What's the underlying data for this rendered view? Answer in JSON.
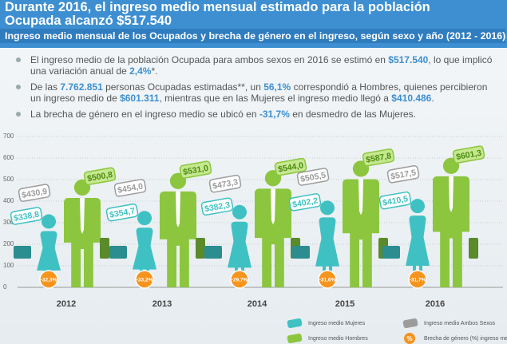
{
  "header": {
    "title": "Durante 2016, el ingreso medio mensual estimado para la población Ocupada alcanzó $517.540",
    "subtitle": "Ingreso medio mensual de los Ocupados y brecha de género en el ingreso, según sexo y año (2012 - 2016)"
  },
  "bullets": [
    [
      "El ingreso medio de la población Ocupada para ambos sexos en 2016 se estimó en ",
      "$517.540",
      ", lo que implicó una variación anual de ",
      "2,4%",
      "*."
    ],
    [
      "De las ",
      "7.762.851",
      " personas Ocupadas estimadas**, un ",
      "56,1%",
      " correspondió a Hombres, quienes percibieron un ingreso medio de ",
      "$601.311",
      ", mientras que en las Mujeres el ingreso medio llegó a ",
      "$410.486",
      "."
    ],
    [
      "La brecha de género en el ingreso medio se ubicó en ",
      "-31,7%",
      " en desmedro de las Mujeres."
    ]
  ],
  "chart_data": {
    "type": "pictogram",
    "categories": [
      "2012",
      "2013",
      "2014",
      "2015",
      "2016"
    ],
    "series": [
      {
        "name": "Ingreso medio Mujeres",
        "color": "#3fc1c3",
        "values": [
          338.8,
          354.7,
          382.3,
          402.2,
          410.5
        ],
        "value_labels": [
          "$338,8",
          "$354,7",
          "$382,3",
          "$402,2",
          "$410,5"
        ]
      },
      {
        "name": "Ingreso medio Hombres",
        "color": "#8cc63f",
        "values": [
          500.8,
          531.0,
          544.0,
          587.8,
          601.3
        ],
        "value_labels": [
          "$500,8",
          "$531,0",
          "$544,0",
          "$587,8",
          "$601,3"
        ]
      },
      {
        "name": "Ingreso medio Ambos Sexos",
        "color": "#9c9c9c",
        "values": [
          430.9,
          454.0,
          473.3,
          505.5,
          517.5
        ],
        "value_labels": [
          "$430,9",
          "$454,0",
          "$473,3",
          "$505,5",
          "$517,5"
        ]
      },
      {
        "name": "Brecha de género (%) ingreso medio",
        "color": "#f7941d",
        "values": [
          -32.3,
          -33.2,
          -29.7,
          -31.6,
          -31.7
        ],
        "value_labels": [
          "-32,3%",
          "-33,2%",
          "-29,7%",
          "-31,6%",
          "-31,7%"
        ],
        "icon": "%"
      }
    ],
    "ylim": [
      0,
      700
    ],
    "yticks": [
      0,
      100,
      200,
      300,
      400,
      500,
      600,
      700
    ],
    "grid": true
  }
}
